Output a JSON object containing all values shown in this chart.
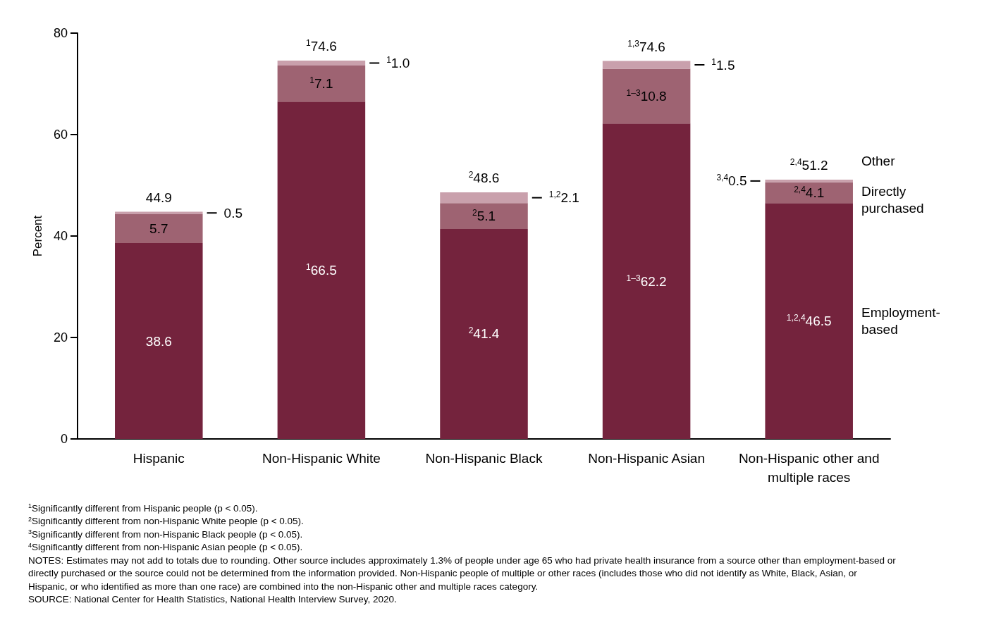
{
  "chart_data": {
    "type": "bar",
    "stacked": true,
    "ylabel": "Percent",
    "categories": [
      "Hispanic",
      "Non-Hispanic White",
      "Non-Hispanic Black",
      "Non-Hispanic Asian",
      "Non-Hispanic other and multiple races"
    ],
    "series": [
      {
        "name": "Employment-based",
        "color": "#74233d",
        "values": [
          38.6,
          66.5,
          41.4,
          62.2,
          46.5
        ],
        "value_labels": [
          "38.6",
          "$^{1}$66.5",
          "$^{2}$41.4",
          "$^{1–3}$62.2",
          "$^{1,2,4}$46.5"
        ]
      },
      {
        "name": "Directly purchased",
        "color": "#9e6372",
        "values": [
          5.7,
          7.1,
          5.1,
          10.8,
          4.1
        ],
        "value_labels": [
          "5.7",
          "$^{1}$7.1",
          "$^{2}$5.1",
          "$^{1–3}$10.8",
          "$^{2,4}$4.1"
        ]
      },
      {
        "name": "Other",
        "color": "#c9a0ac",
        "values": [
          0.5,
          1.0,
          2.1,
          1.5,
          0.5
        ],
        "value_labels": [
          "0.5",
          "$^{1}$1.0",
          "$^{1,2}$2.1",
          "$^{1}$1.5",
          "$^{3,4}$0.5"
        ]
      }
    ],
    "totals": [
      "44.9",
      "$^{1}$74.6",
      "$^{2}$48.6",
      "$^{1,3}$74.6",
      "$^{2,4}$51.2"
    ],
    "ylim": [
      0,
      80
    ],
    "yticks": [
      0,
      20,
      40,
      60,
      80
    ],
    "grid": false,
    "legend": "right",
    "annotations": [
      "$^{1}$Significantly different from Hispanic people (p < 0.05).",
      "$^{2}$Significantly different from non-Hispanic White people (p < 0.05).",
      "$^{3}$Significantly different from non-Hispanic Black people (p < 0.05).",
      "$^{4}$Significantly different from non-Hispanic Asian people (p < 0.05).",
      "NOTES: Estimates may not add to totals due to rounding. Other source includes approximately 1.3% of people under age 65 who had private health insurance from a source other than employment-based or directly purchased or the source could not be determined from the information provided. Non-Hispanic people of multiple or other races (includes those who did not identify as White, Black, Asian, or Hispanic, or who identified as more than one race) are combined into the non-Hispanic other and multiple races category.",
      "SOURCE: National Center for Health Statistics, National Health Interview Survey, 2020."
    ]
  }
}
